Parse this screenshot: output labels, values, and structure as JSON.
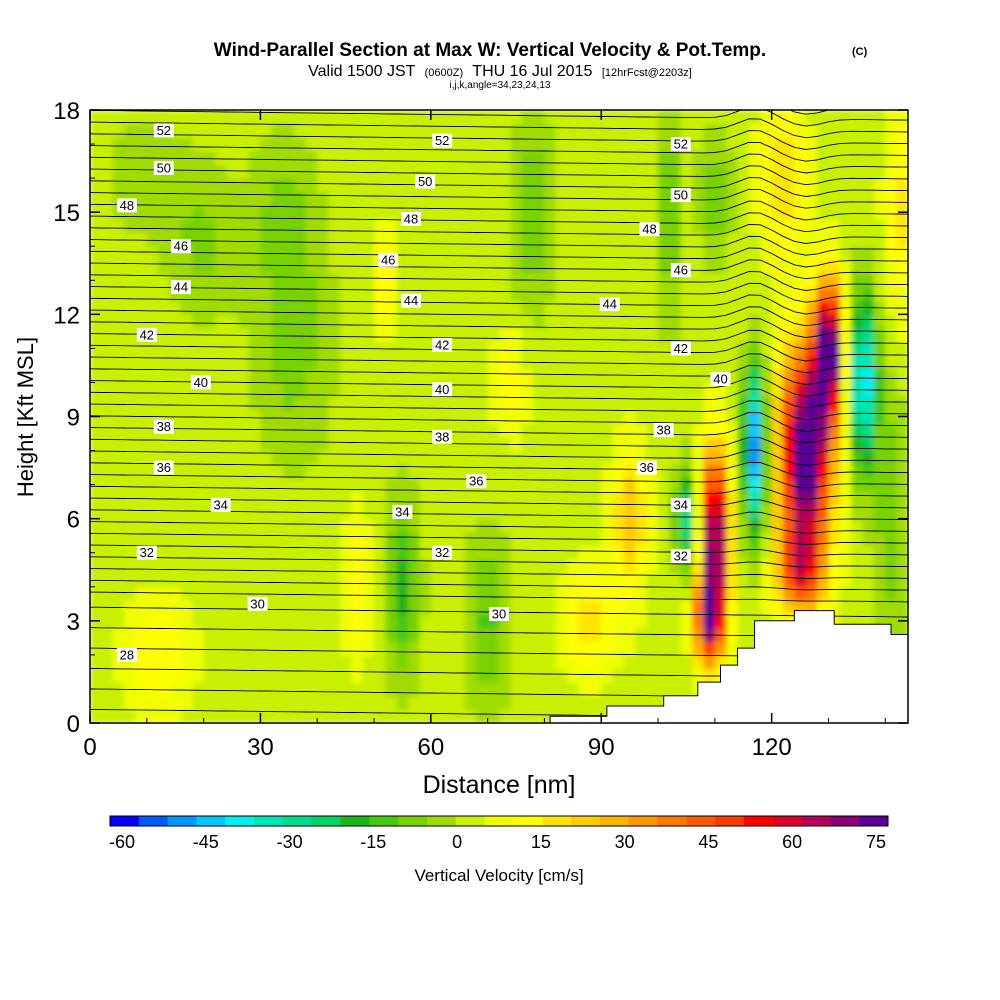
{
  "chart_data": {
    "type": "heatmap",
    "title": "Wind-Parallel Section at Max W: Vertical Velocity & Pot.Temp.",
    "title_mark": "(C)",
    "subtitle": {
      "main_a": "Valid 1500 JST",
      "small_a": "(0600Z)",
      "main_b": "THU 16 Jul 2015",
      "small_b": "[12hrFcst@2203z]"
    },
    "subtitle2": "i,j,k,angle=34,23,24,13",
    "xlabel": "Distance [nm]",
    "ylabel": "Height [Kft MSL]",
    "xlim": [
      0,
      144
    ],
    "ylim": [
      0,
      18
    ],
    "x_ticks": [
      0,
      30,
      60,
      90,
      120
    ],
    "y_ticks": [
      0,
      3,
      6,
      9,
      12,
      15,
      18
    ],
    "colorbar": {
      "label": "Vertical Velocity [cm/s]",
      "min": -60,
      "max": 75,
      "step": 5,
      "tick_labels": [
        -60,
        -45,
        -30,
        -15,
        0,
        15,
        30,
        45,
        60,
        75
      ],
      "colors": [
        "#0000ff",
        "#005aff",
        "#0096ff",
        "#00c8ff",
        "#00f0f0",
        "#00e6b4",
        "#00dc8c",
        "#00d264",
        "#1eb41e",
        "#46c814",
        "#78d200",
        "#a0dc00",
        "#c8f000",
        "#f0ff00",
        "#ffff00",
        "#ffe600",
        "#ffcc00",
        "#ffb400",
        "#ff9600",
        "#ff7800",
        "#ff5a00",
        "#ff3c00",
        "#ff0000",
        "#dc0028",
        "#b4005a",
        "#8c0078",
        "#5a0096"
      ]
    },
    "theta_levels": [
      28,
      30,
      32,
      34,
      36,
      38,
      40,
      42,
      44,
      46,
      48,
      50,
      52
    ],
    "theta_labels": [
      {
        "text": "52",
        "x": 13,
        "y": 17.4
      },
      {
        "text": "52",
        "x": 62,
        "y": 17.1
      },
      {
        "text": "52",
        "x": 104,
        "y": 17.0
      },
      {
        "text": "50",
        "x": 13,
        "y": 16.3
      },
      {
        "text": "50",
        "x": 59,
        "y": 15.9
      },
      {
        "text": "50",
        "x": 104,
        "y": 15.5
      },
      {
        "text": "48",
        "x": 6.5,
        "y": 15.2
      },
      {
        "text": "48",
        "x": 56.5,
        "y": 14.8
      },
      {
        "text": "48",
        "x": 98.5,
        "y": 14.5
      },
      {
        "text": "46",
        "x": 16,
        "y": 14.0
      },
      {
        "text": "46",
        "x": 52.5,
        "y": 13.6
      },
      {
        "text": "46",
        "x": 104,
        "y": 13.3
      },
      {
        "text": "44",
        "x": 16,
        "y": 12.8
      },
      {
        "text": "44",
        "x": 56.5,
        "y": 12.4
      },
      {
        "text": "44",
        "x": 91.5,
        "y": 12.3
      },
      {
        "text": "42",
        "x": 10,
        "y": 11.4
      },
      {
        "text": "42",
        "x": 62,
        "y": 11.1
      },
      {
        "text": "42",
        "x": 104,
        "y": 11.0
      },
      {
        "text": "40",
        "x": 19.5,
        "y": 10.0
      },
      {
        "text": "40",
        "x": 62,
        "y": 9.8
      },
      {
        "text": "40",
        "x": 111,
        "y": 10.1
      },
      {
        "text": "38",
        "x": 13,
        "y": 8.7
      },
      {
        "text": "38",
        "x": 62,
        "y": 8.4
      },
      {
        "text": "38",
        "x": 101,
        "y": 8.6
      },
      {
        "text": "36",
        "x": 13,
        "y": 7.5
      },
      {
        "text": "36",
        "x": 68,
        "y": 7.1
      },
      {
        "text": "36",
        "x": 98,
        "y": 7.5
      },
      {
        "text": "34",
        "x": 23,
        "y": 6.4
      },
      {
        "text": "34",
        "x": 55,
        "y": 6.2
      },
      {
        "text": "34",
        "x": 104,
        "y": 6.4
      },
      {
        "text": "32",
        "x": 10,
        "y": 5.0
      },
      {
        "text": "32",
        "x": 62,
        "y": 5.0
      },
      {
        "text": "32",
        "x": 104,
        "y": 4.9
      },
      {
        "text": "30",
        "x": 29.5,
        "y": 3.5
      },
      {
        "text": "30",
        "x": 72,
        "y": 3.2
      },
      {
        "text": "28",
        "x": 6.5,
        "y": 2.0
      }
    ]
  }
}
